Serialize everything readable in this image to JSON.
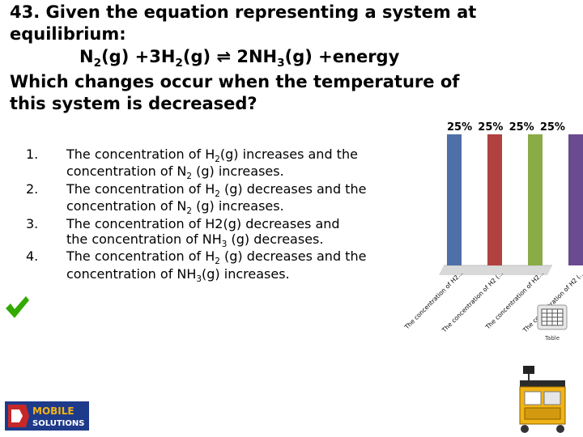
{
  "question": {
    "line1": "43. Given the equation representing a system at",
    "line2": "equilibrium:",
    "equation": {
      "n_sym": "N",
      "n_sub": "2",
      "n_phase": "(g) +3H",
      "h_sub": "2",
      "mid": "(g) ⇌ 2NH",
      "nh3_sub": "3",
      "end": "(g) +energy"
    },
    "line4": "Which changes occur when the temperature of",
    "line5": "this system is decreased?"
  },
  "answers": [
    {
      "num": "1.",
      "a": "The concentration of H",
      "a_sub": "2",
      "b": "(g) increases and the concentration of N",
      "b_sub": "2",
      "c": " (g) increases."
    },
    {
      "num": "2.",
      "a": "The concentration of H",
      "a_sub": "2",
      "b": " (g) decreases and the concentration of N",
      "b_sub": "2",
      "c": " (g) increases."
    },
    {
      "num": "3.",
      "text": "The concentration of H2(g) decreases and",
      "text2": "the concentration of NH",
      "sub": "3",
      "text3": " (g) decreases."
    },
    {
      "num": "4.",
      "a": "The concentration of H",
      "a_sub": "2",
      "b": " (g) decreases and the concentration of NH",
      "b_sub": "3",
      "c": "(g) increases."
    }
  ],
  "correct_answer_icon": "checkmark-icon",
  "correct_color": "#33aa00",
  "chart_data": {
    "type": "bar",
    "categories": [
      "The concentration of H2(...",
      "The concentration of H2 (...",
      "The concentration of H2(...",
      "The concentration of H2 (..."
    ],
    "category_labels_visible": [
      "The concentration of H2...",
      "The concentration of H2 (...",
      "The concentration of H2...",
      "The concentration of H2 (..."
    ],
    "values": [
      25,
      25,
      25,
      25
    ],
    "value_labels": [
      "25%",
      "25%",
      "25%",
      "25%"
    ],
    "colors": [
      "#4f6fa8",
      "#b0413e",
      "#8aab45",
      "#6a4a91"
    ],
    "ylim": [
      0,
      25
    ]
  },
  "table_icon_label": "Table",
  "logo": {
    "line1": "MOBILE",
    "line2": "SOLUTIONS"
  }
}
